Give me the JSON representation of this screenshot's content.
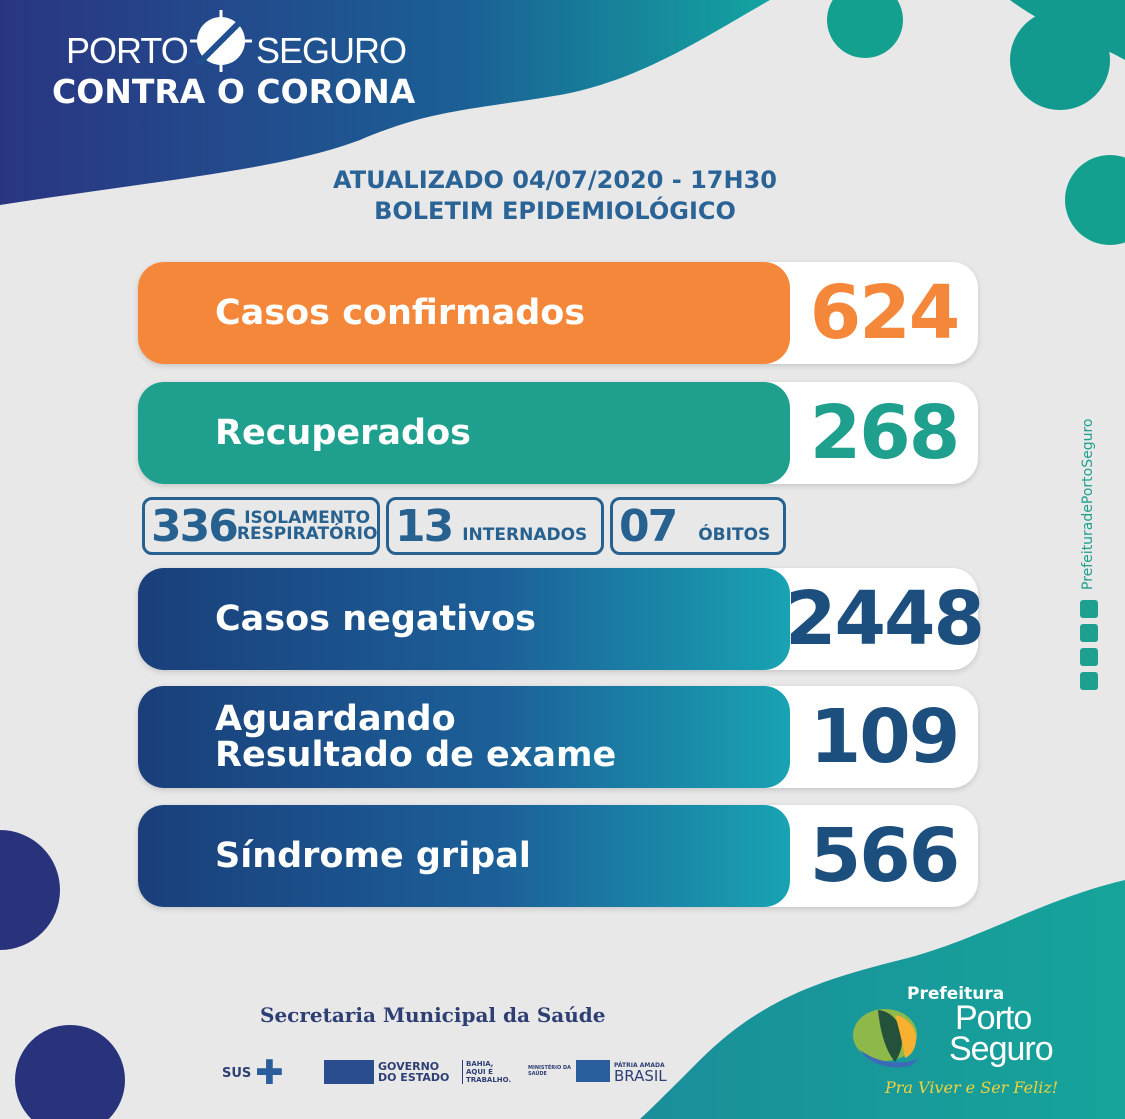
{
  "brand": {
    "line1_left": "PORTO",
    "line1_right": "SEGURO",
    "line2": "CONTRA O CORONA"
  },
  "header": {
    "updated": "ATUALIZADO 04/07/2020 - 17H30",
    "subtitle": "BOLETIM EPIDEMIOLÓGICO"
  },
  "stats": [
    {
      "label": "Casos confirmados",
      "value": "624",
      "color": "#f4873a"
    },
    {
      "label": "Recuperados",
      "value": "268",
      "color": "#1fa08e"
    },
    {
      "label": "Casos negativos",
      "value": "2448",
      "color": "#1d4f7e"
    },
    {
      "label_line1": "Aguardando",
      "label_line2": "Resultado de exame",
      "value": "109",
      "color": "#1d4f7e"
    },
    {
      "label": "Síndrome gripal",
      "value": "566",
      "color": "#1d4f7e"
    }
  ],
  "small_stats": [
    {
      "value": "336",
      "label_line1": "ISOLAMENTO",
      "label_line2": "RESPIRATÓRIO"
    },
    {
      "value": "13",
      "label": "INTERNADOS"
    },
    {
      "value": "07",
      "label": "ÓBITOS"
    }
  ],
  "social": {
    "handle": "PrefeituradePortoSeguro",
    "icons": [
      "youtube-icon",
      "facebook-icon",
      "flickr-icon",
      "instagram-icon"
    ]
  },
  "footer": {
    "secretaria": "Secretaria Municipal da Saúde",
    "sus": "SUS",
    "governo": "GOVERNO DO ESTADO",
    "bahia": "BAHIA, AQUI É TRABALHO.",
    "ministerio": "MINISTÉRIO DA SAÚDE",
    "brasil_top": "PÁTRIA AMADA",
    "brasil": "BRASIL",
    "prefeitura": "Prefeitura",
    "porto": "Porto",
    "seguro": "Seguro",
    "slogan": "Pra Viver e Ser Feliz!"
  }
}
